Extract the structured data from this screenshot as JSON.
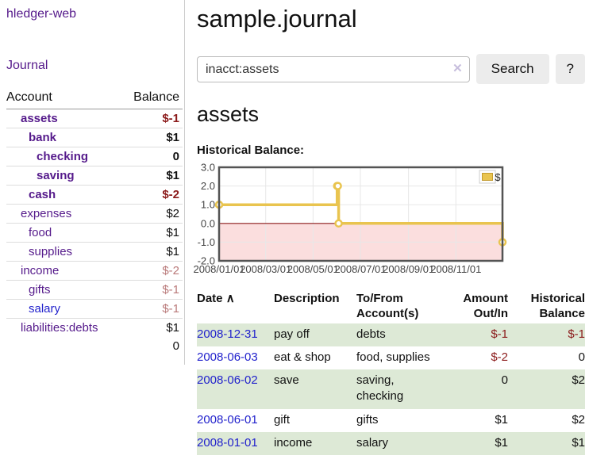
{
  "app": {
    "title": "hledger-web"
  },
  "sidebar": {
    "journal_link": "Journal",
    "accounts_table": {
      "col_account": "Account",
      "col_balance": "Balance",
      "rows": [
        {
          "name": "assets",
          "balance": "$-1",
          "depth": 1,
          "bold": true,
          "link": "purple",
          "balance_class": "bal-neg"
        },
        {
          "name": "bank",
          "balance": "$1",
          "depth": 2,
          "bold": true,
          "link": "purple",
          "balance_class": ""
        },
        {
          "name": "checking",
          "balance": "0",
          "depth": 3,
          "bold": true,
          "link": "purple",
          "balance_class": ""
        },
        {
          "name": "saving",
          "balance": "$1",
          "depth": 3,
          "bold": true,
          "link": "purple",
          "balance_class": ""
        },
        {
          "name": "cash",
          "balance": "$-2",
          "depth": 2,
          "bold": true,
          "link": "purple",
          "balance_class": "bal-neg"
        },
        {
          "name": "expenses",
          "balance": "$2",
          "depth": 1,
          "bold": false,
          "link": "purple",
          "balance_class": ""
        },
        {
          "name": "food",
          "balance": "$1",
          "depth": 2,
          "bold": false,
          "link": "purple",
          "balance_class": ""
        },
        {
          "name": "supplies",
          "balance": "$1",
          "depth": 2,
          "bold": false,
          "link": "purple",
          "balance_class": ""
        },
        {
          "name": "income",
          "balance": "$-2",
          "depth": 1,
          "bold": false,
          "link": "purple",
          "balance_class": "bal-rose"
        },
        {
          "name": "gifts",
          "balance": "$-1",
          "depth": 2,
          "bold": false,
          "link": "purple",
          "balance_class": "bal-rose"
        },
        {
          "name": "salary",
          "balance": "$-1",
          "depth": 2,
          "bold": false,
          "link": "blue",
          "balance_class": "bal-rose"
        },
        {
          "name": "liabilities:debts",
          "balance": "$1",
          "depth": 1,
          "bold": false,
          "link": "purple",
          "balance_class": ""
        }
      ],
      "total": "0"
    }
  },
  "header": {
    "title": "sample.journal"
  },
  "search": {
    "value": "inacct:assets",
    "clear_icon": "✕",
    "button_label": "Search",
    "help_label": "?"
  },
  "account_page": {
    "title": "assets",
    "chart_label": "Historical Balance:"
  },
  "chart_data": {
    "type": "line",
    "style": "step",
    "title": "Historical Balance",
    "series": [
      {
        "name": "$",
        "color": "#e9c44f",
        "points": [
          {
            "date": "2008-01-01",
            "value": 1
          },
          {
            "date": "2008-06-01",
            "value": 2
          },
          {
            "date": "2008-06-02",
            "value": 2
          },
          {
            "date": "2008-06-03",
            "value": 0
          },
          {
            "date": "2008-12-31",
            "value": -1
          }
        ]
      }
    ],
    "xlim": [
      "2008-01-01",
      "2008-12-31"
    ],
    "ylim": [
      -2.0,
      3.0
    ],
    "yticks": [
      "3.0",
      "2.0",
      "1.0",
      "0.0",
      "-1.0",
      "-2.0"
    ],
    "xticks": [
      "2008/01/01",
      "2008/03/01",
      "2008/05/01",
      "2008/07/01",
      "2008/09/01",
      "2008/11/01"
    ],
    "grid": true,
    "legend_position": "top-right",
    "legend": {
      "label": "$",
      "swatch_color": "#e9c44f"
    },
    "negative_fill": "#fbdede",
    "zero_line_color": "#8b1a1a",
    "border_color": "#545454"
  },
  "register": {
    "col_date": "Date",
    "sort_indicator": "∧",
    "col_description": "Description",
    "col_accounts": "To/From\nAccount(s)",
    "col_amount": "Amount\nOut/In",
    "col_balance": "Historical\nBalance",
    "rows": [
      {
        "date": "2008-12-31",
        "description": "pay off",
        "accounts": "debts",
        "amount": "$-1",
        "balance": "$-1",
        "amount_class": "neg",
        "balance_class": "neg"
      },
      {
        "date": "2008-06-03",
        "description": "eat & shop",
        "accounts": "food, supplies",
        "amount": "$-2",
        "balance": "0",
        "amount_class": "neg",
        "balance_class": ""
      },
      {
        "date": "2008-06-02",
        "description": "save",
        "accounts": "saving, checking",
        "amount": "0",
        "balance": "$2",
        "amount_class": "",
        "balance_class": ""
      },
      {
        "date": "2008-06-01",
        "description": "gift",
        "accounts": "gifts",
        "amount": "$1",
        "balance": "$2",
        "amount_class": "",
        "balance_class": ""
      },
      {
        "date": "2008-01-01",
        "description": "income",
        "accounts": "salary",
        "amount": "$1",
        "balance": "$1",
        "amount_class": "",
        "balance_class": ""
      }
    ]
  },
  "colors": {
    "link_purple": "#551a8b",
    "link_blue": "#2222cc",
    "negative_strong": "#8b1a1a",
    "negative_soft": "#b97979",
    "row_stripe_green": "#dde9d6",
    "chart_line_gold": "#e9c44f",
    "chart_negative_pink": "#fbdede",
    "button_gray": "#ececec"
  }
}
